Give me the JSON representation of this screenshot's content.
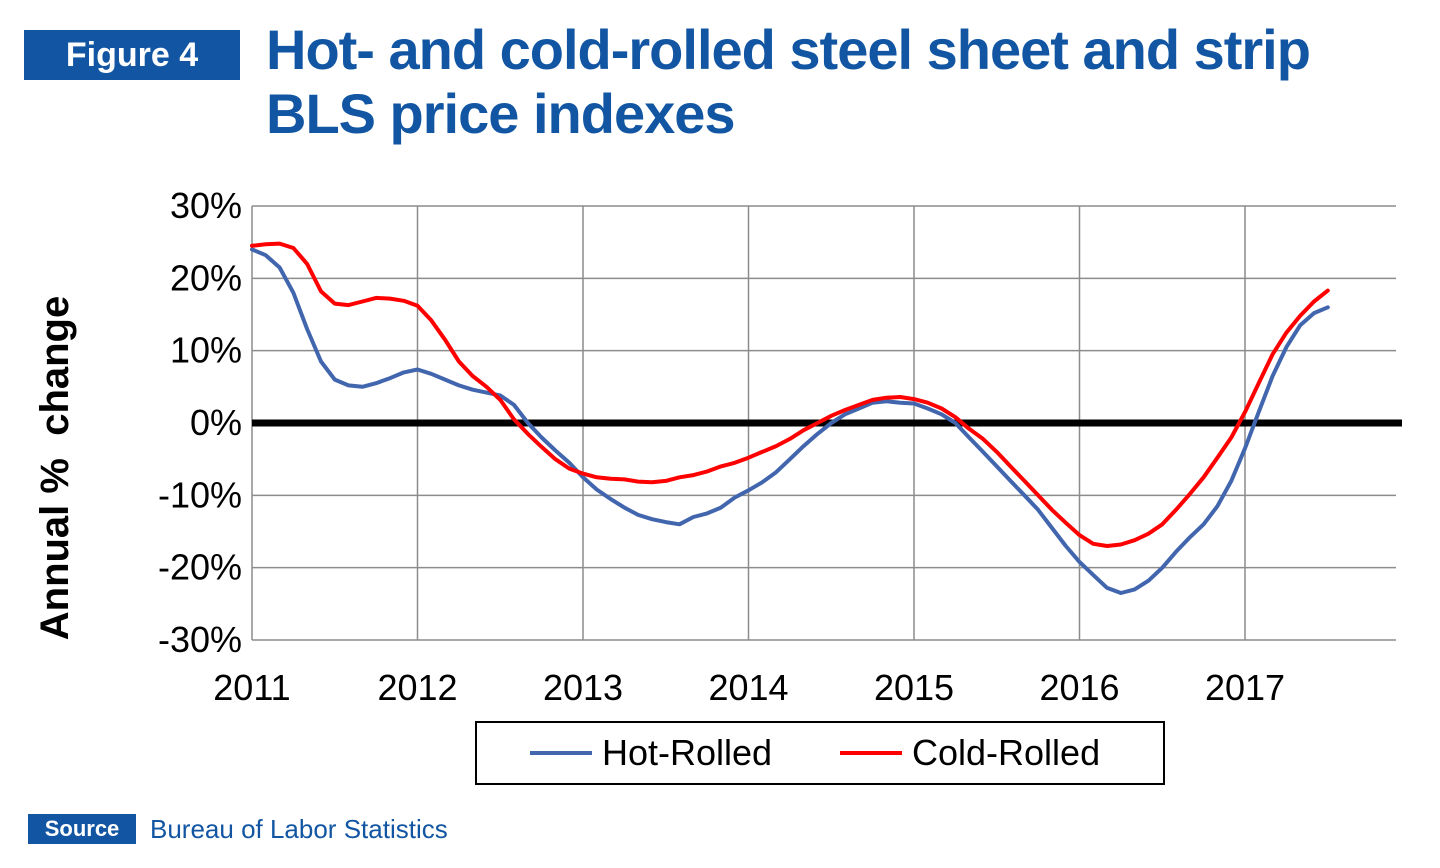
{
  "header": {
    "figure_label": "Figure 4",
    "title_line1": "Hot- and cold-rolled steel sheet and strip",
    "title_line2": "BLS price indexes"
  },
  "source": {
    "label": "Source",
    "text": "Bureau of Labor Statistics"
  },
  "colors": {
    "brand": "#1256a3",
    "hot_rolled": "#4266ae",
    "cold_rolled": "#ff0000",
    "zero_line": "#000000",
    "grid": "#8c8c8c"
  },
  "chart_data": {
    "type": "line",
    "title": "Hot- and cold-rolled steel sheet and strip BLS price indexes",
    "xlabel": "",
    "ylabel": "Annual %  change",
    "xlim": [
      2011,
      2017.95
    ],
    "ylim": [
      -30,
      30
    ],
    "yticks": [
      30,
      20,
      10,
      0,
      -10,
      -20,
      -30
    ],
    "ytick_labels": [
      "30%",
      "20%",
      "10%",
      "0%",
      "-10%",
      "-20%",
      "-30%"
    ],
    "xticks": [
      2011,
      2012,
      2013,
      2014,
      2015,
      2016,
      2017
    ],
    "xtick_labels": [
      "2011",
      "2012",
      "2013",
      "2014",
      "2015",
      "2016",
      "2017"
    ],
    "grid": true,
    "legend": "bottom",
    "series": [
      {
        "name": "Hot-Rolled",
        "color": "#4266ae",
        "x": [
          2011.0,
          2011.083,
          2011.167,
          2011.25,
          2011.333,
          2011.417,
          2011.5,
          2011.583,
          2011.667,
          2011.75,
          2011.833,
          2011.917,
          2012.0,
          2012.083,
          2012.167,
          2012.25,
          2012.333,
          2012.417,
          2012.5,
          2012.583,
          2012.667,
          2012.75,
          2012.833,
          2012.917,
          2013.0,
          2013.083,
          2013.167,
          2013.25,
          2013.333,
          2013.417,
          2013.5,
          2013.583,
          2013.667,
          2013.75,
          2013.833,
          2013.917,
          2014.0,
          2014.083,
          2014.167,
          2014.25,
          2014.333,
          2014.417,
          2014.5,
          2014.583,
          2014.667,
          2014.75,
          2014.833,
          2014.917,
          2015.0,
          2015.083,
          2015.167,
          2015.25,
          2015.333,
          2015.417,
          2015.5,
          2015.583,
          2015.667,
          2015.75,
          2015.833,
          2015.917,
          2016.0,
          2016.083,
          2016.167,
          2016.25,
          2016.333,
          2016.417,
          2016.5,
          2016.583,
          2016.667,
          2016.75,
          2016.833,
          2016.917,
          2017.0,
          2017.083,
          2017.167,
          2017.25,
          2017.333,
          2017.417,
          2017.5
        ],
        "values": [
          24.0,
          23.2,
          21.5,
          18.0,
          13.0,
          8.5,
          6.0,
          5.2,
          5.0,
          5.5,
          6.2,
          7.0,
          7.4,
          6.8,
          6.0,
          5.2,
          4.6,
          4.2,
          3.8,
          2.5,
          0.0,
          -2.0,
          -3.8,
          -5.5,
          -7.5,
          -9.2,
          -10.5,
          -11.7,
          -12.7,
          -13.3,
          -13.7,
          -14.0,
          -13.0,
          -12.5,
          -11.7,
          -10.3,
          -9.3,
          -8.2,
          -6.8,
          -5.0,
          -3.2,
          -1.5,
          0.0,
          1.2,
          2.0,
          2.8,
          3.0,
          2.8,
          2.7,
          2.0,
          1.2,
          0.0,
          -2.0,
          -4.0,
          -6.0,
          -8.0,
          -10.0,
          -12.0,
          -14.5,
          -17.0,
          -19.2,
          -21.0,
          -22.8,
          -23.5,
          -23.0,
          -21.8,
          -20.0,
          -17.8,
          -15.8,
          -14.0,
          -11.5,
          -8.0,
          -3.5,
          1.5,
          6.5,
          10.5,
          13.5,
          15.2,
          16.0
        ]
      },
      {
        "name": "Cold-Rolled",
        "color": "#ff0000",
        "x": [
          2011.0,
          2011.083,
          2011.167,
          2011.25,
          2011.333,
          2011.417,
          2011.5,
          2011.583,
          2011.667,
          2011.75,
          2011.833,
          2011.917,
          2012.0,
          2012.083,
          2012.167,
          2012.25,
          2012.333,
          2012.417,
          2012.5,
          2012.583,
          2012.667,
          2012.75,
          2012.833,
          2012.917,
          2013.0,
          2013.083,
          2013.167,
          2013.25,
          2013.333,
          2013.417,
          2013.5,
          2013.583,
          2013.667,
          2013.75,
          2013.833,
          2013.917,
          2014.0,
          2014.083,
          2014.167,
          2014.25,
          2014.333,
          2014.417,
          2014.5,
          2014.583,
          2014.667,
          2014.75,
          2014.833,
          2014.917,
          2015.0,
          2015.083,
          2015.167,
          2015.25,
          2015.333,
          2015.417,
          2015.5,
          2015.583,
          2015.667,
          2015.75,
          2015.833,
          2015.917,
          2016.0,
          2016.083,
          2016.167,
          2016.25,
          2016.333,
          2016.417,
          2016.5,
          2016.583,
          2016.667,
          2016.75,
          2016.833,
          2016.917,
          2017.0,
          2017.083,
          2017.167,
          2017.25,
          2017.333,
          2017.417,
          2017.5
        ],
        "values": [
          24.5,
          24.7,
          24.8,
          24.2,
          22.0,
          18.2,
          16.5,
          16.3,
          16.8,
          17.3,
          17.2,
          16.9,
          16.2,
          14.2,
          11.5,
          8.5,
          6.5,
          5.0,
          3.2,
          0.5,
          -1.5,
          -3.3,
          -5.0,
          -6.3,
          -7.0,
          -7.5,
          -7.7,
          -7.8,
          -8.1,
          -8.2,
          -8.0,
          -7.5,
          -7.2,
          -6.7,
          -6.0,
          -5.5,
          -4.8,
          -4.0,
          -3.2,
          -2.2,
          -1.0,
          0.0,
          1.0,
          1.8,
          2.5,
          3.2,
          3.5,
          3.6,
          3.3,
          2.8,
          2.0,
          0.8,
          -0.8,
          -2.2,
          -4.0,
          -6.0,
          -8.0,
          -10.0,
          -12.0,
          -13.8,
          -15.5,
          -16.7,
          -17.0,
          -16.8,
          -16.2,
          -15.3,
          -14.0,
          -12.0,
          -9.8,
          -7.5,
          -4.8,
          -2.0,
          1.5,
          5.5,
          9.5,
          12.5,
          14.8,
          16.8,
          18.3
        ]
      }
    ]
  }
}
